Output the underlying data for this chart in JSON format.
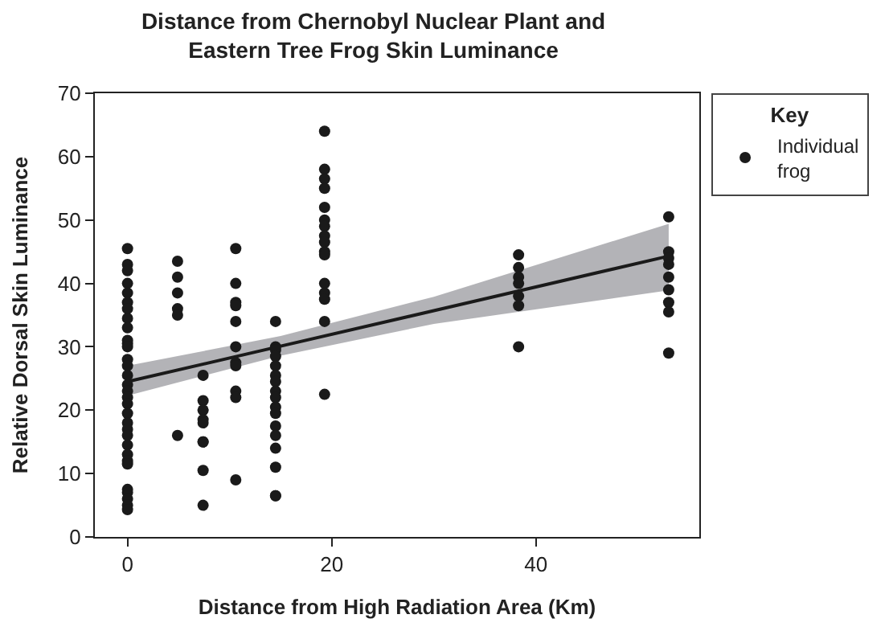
{
  "chart_data": {
    "type": "scatter",
    "title": "Distance from Chernobyl Nuclear Plant and\nEastern Tree Frog Skin Luminance",
    "xlabel": "Distance from High Radiation Area (Km)",
    "ylabel": "Relative Dorsal Skin Luminance",
    "legend_title": "Key",
    "legend": "top right",
    "xlim": [
      -3.2,
      56
    ],
    "xticks": [
      0,
      20,
      40
    ],
    "ylim": [
      0,
      70
    ],
    "yticks": [
      0,
      10,
      20,
      30,
      40,
      50,
      60,
      70
    ],
    "series": [
      {
        "name": "Individual frog",
        "color": "#1a1a1a",
        "marker": "circle",
        "x": [
          0,
          0,
          0,
          0,
          0,
          0,
          0,
          0,
          0,
          0,
          0,
          0,
          0,
          0,
          0,
          0,
          0,
          0,
          0,
          0,
          0,
          0,
          0,
          0,
          0,
          0,
          0,
          0,
          0,
          0,
          0,
          0,
          4.9,
          4.9,
          4.9,
          4.9,
          4.9,
          4.9,
          7.4,
          7.4,
          7.4,
          7.4,
          7.4,
          7.4,
          7.4,
          7.4,
          7.4,
          10.6,
          10.6,
          10.6,
          10.6,
          10.6,
          10.6,
          10.6,
          10.6,
          10.6,
          10.6,
          10.6,
          14.5,
          14.5,
          14.5,
          14.5,
          14.5,
          14.5,
          14.5,
          14.5,
          14.5,
          14.5,
          14.5,
          14.5,
          14.5,
          14.5,
          14.5,
          14.5,
          14.5,
          19.3,
          19.3,
          19.3,
          19.3,
          19.3,
          19.3,
          19.3,
          19.3,
          19.3,
          19.3,
          19.3,
          19.3,
          19.3,
          19.3,
          19.3,
          19.3,
          38.3,
          38.3,
          38.3,
          38.3,
          38.3,
          38.3,
          38.3,
          53,
          53,
          53,
          53,
          53,
          53,
          53,
          53,
          53
        ],
        "values": [
          45.5,
          43,
          42,
          40,
          38.5,
          37,
          36,
          34.5,
          33,
          31,
          30.5,
          30,
          28,
          27,
          25.5,
          24,
          23,
          22,
          21,
          19.5,
          18,
          17,
          16,
          14.5,
          13,
          12,
          11.5,
          7.5,
          7,
          6,
          5,
          4.3,
          43.5,
          41,
          38.5,
          36,
          35,
          16,
          25.5,
          21.5,
          20,
          18.5,
          18,
          15,
          15,
          10.5,
          5,
          45.5,
          40,
          37,
          36.5,
          34,
          30,
          27.5,
          27,
          23,
          22,
          9,
          34,
          30,
          29.5,
          28.5,
          27,
          25.5,
          24.5,
          23,
          22,
          20.5,
          19.5,
          17.5,
          16,
          14,
          11,
          6.5,
          6.5,
          64,
          58,
          56.5,
          55,
          52,
          50,
          49,
          47.5,
          46.5,
          45,
          44.5,
          40,
          38.5,
          37.5,
          34,
          22.5,
          44.5,
          42.5,
          41,
          40,
          38,
          36.5,
          30,
          50.5,
          45,
          44,
          43,
          41,
          39,
          37,
          35.5,
          29
        ]
      },
      {
        "type": "line",
        "color": "#1a1a1a",
        "marker": "none",
        "x": [
          0,
          15,
          30,
          53
        ],
        "values": [
          24.5,
          30.1,
          35.7,
          44.3
        ],
        "lower": [
          22.3,
          28.6,
          33.6,
          38.9
        ],
        "upper": [
          27.0,
          31.7,
          37.9,
          49.4
        ]
      }
    ]
  }
}
